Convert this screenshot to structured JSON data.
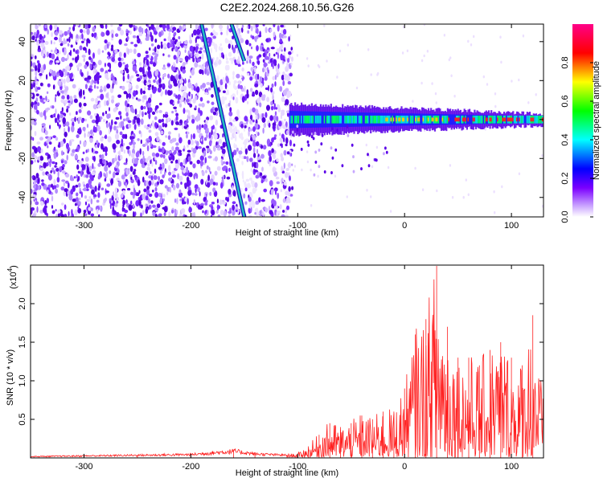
{
  "page_title": "C2E2.2024.268.10.56.G26",
  "chart_data": [
    {
      "type": "heatmap",
      "xlabel": "Height of straight line (km)",
      "ylabel": "Frequency (Hz)",
      "xlim": [
        -350,
        130
      ],
      "ylim": [
        -50,
        49
      ],
      "xticks": [
        -300,
        -200,
        -100,
        0,
        100
      ],
      "yticks": [
        -40,
        -20,
        0,
        20,
        40
      ],
      "colorbar": {
        "label": "Normalized spectral amplitude",
        "range": [
          0,
          1
        ],
        "ticks": [
          "0.0",
          "0.2",
          "0.4",
          "0.6",
          "0.8"
        ],
        "colors": [
          "#ffffff",
          "#7b00ff",
          "#0000ff",
          "#00ffff",
          "#00ff00",
          "#ffff00",
          "#ff0000",
          "#ff0088"
        ]
      },
      "colors": {
        "noise": "#7b2cff",
        "line": "#20c0c0",
        "carrier_peak": "#ff2020"
      },
      "features": {
        "noise_region_x": [
          -350,
          -105
        ],
        "carrier_frequency": 0,
        "carrier_start_x": -108,
        "diagonal_line_1": {
          "x": [
            -190,
            -150
          ],
          "y": [
            49,
            -50
          ]
        },
        "diagonal_line_2": {
          "x": [
            -162,
            -150
          ],
          "y": [
            49,
            30
          ]
        }
      }
    },
    {
      "type": "line",
      "xlabel": "Height of straight line (km)",
      "ylabel": "SNR (10 * v/v)",
      "y_scale_label": "(x10",
      "y_scale_exp": "4",
      "y_scale_close": ")",
      "xlim": [
        -350,
        130
      ],
      "ylim": [
        0,
        2.5
      ],
      "xticks": [
        -300,
        -200,
        -100,
        0,
        100
      ],
      "yticks": [
        0.5,
        1.0,
        1.5,
        2.0
      ],
      "ytick_labels": [
        "0.5",
        "1.0",
        "1.5",
        "2.0"
      ],
      "series_color": "#ff2020",
      "x": [
        -350,
        -300,
        -250,
        -200,
        -160,
        -140,
        -110,
        -100,
        -90,
        -80,
        -70,
        -60,
        -50,
        -40,
        -30,
        -20,
        -10,
        0,
        10,
        20,
        30,
        40,
        50,
        60,
        70,
        80,
        90,
        100,
        110,
        120,
        130
      ],
      "values": [
        0.02,
        0.03,
        0.04,
        0.05,
        0.1,
        0.06,
        0.04,
        0.05,
        0.15,
        0.3,
        0.45,
        0.4,
        0.45,
        0.55,
        0.5,
        0.6,
        0.6,
        0.9,
        1.6,
        1.8,
        2.5,
        1.7,
        1.3,
        1.3,
        1.2,
        1.4,
        1.5,
        1.3,
        1.2,
        1.85,
        0.7
      ]
    }
  ]
}
